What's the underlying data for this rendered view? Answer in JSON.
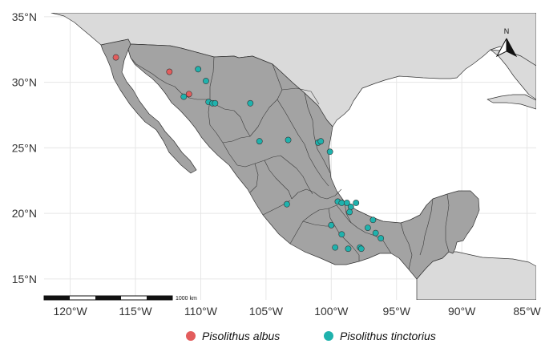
{
  "map": {
    "lat_labels": [
      "35°N",
      "30°N",
      "25°N",
      "20°N",
      "15°N"
    ],
    "lon_labels": [
      "120°W",
      "115°W",
      "110°W",
      "105°W",
      "100°W",
      "95°W",
      "90°W",
      "85°W"
    ],
    "lat_ticks": [
      35,
      30,
      25,
      20,
      15
    ],
    "lon_ticks": [
      -120,
      -115,
      -110,
      -105,
      -100,
      -95,
      -90,
      -85
    ],
    "extent": {
      "lon": [
        -122,
        -84.3
      ],
      "lat": [
        13.4,
        35.3
      ]
    },
    "north_label": "N",
    "scale_label": "1000 km",
    "colors": {
      "panel": "#ffffff",
      "grid": "#e6e6e6",
      "land": "#dadada",
      "mexico": "#a3a3a3",
      "border": "#333333",
      "albus": "#e35d5d",
      "tinctorius": "#1fb2ad"
    }
  },
  "legend": [
    {
      "label": "Pisolithus albus",
      "color": "#e35d5d"
    },
    {
      "label": "Pisolithus tinctorius",
      "color": "#1fb2ad"
    }
  ],
  "points": {
    "albus": [
      [
        -116.5,
        31.9
      ],
      [
        -112.4,
        30.8
      ],
      [
        -110.9,
        29.1
      ]
    ],
    "tinctorius": [
      [
        -110.2,
        31.0
      ],
      [
        -109.6,
        30.1
      ],
      [
        -111.3,
        28.9
      ],
      [
        -109.4,
        28.5
      ],
      [
        -109.1,
        28.4
      ],
      [
        -108.9,
        28.4
      ],
      [
        -106.2,
        28.4
      ],
      [
        -105.5,
        25.5
      ],
      [
        -103.3,
        25.6
      ],
      [
        -101.0,
        25.4
      ],
      [
        -100.8,
        25.5
      ],
      [
        -100.1,
        24.7
      ],
      [
        -99.5,
        20.9
      ],
      [
        -99.2,
        20.8
      ],
      [
        -98.8,
        20.8
      ],
      [
        -98.1,
        20.8
      ],
      [
        -98.5,
        20.5
      ],
      [
        -98.6,
        20.1
      ],
      [
        -103.4,
        20.7
      ],
      [
        -96.8,
        19.5
      ],
      [
        -97.2,
        18.9
      ],
      [
        -96.6,
        18.5
      ],
      [
        -96.2,
        18.1
      ],
      [
        -100.0,
        19.1
      ],
      [
        -99.2,
        18.4
      ],
      [
        -99.7,
        17.4
      ],
      [
        -98.7,
        17.3
      ],
      [
        -97.8,
        17.4
      ],
      [
        -97.7,
        17.3
      ]
    ]
  }
}
